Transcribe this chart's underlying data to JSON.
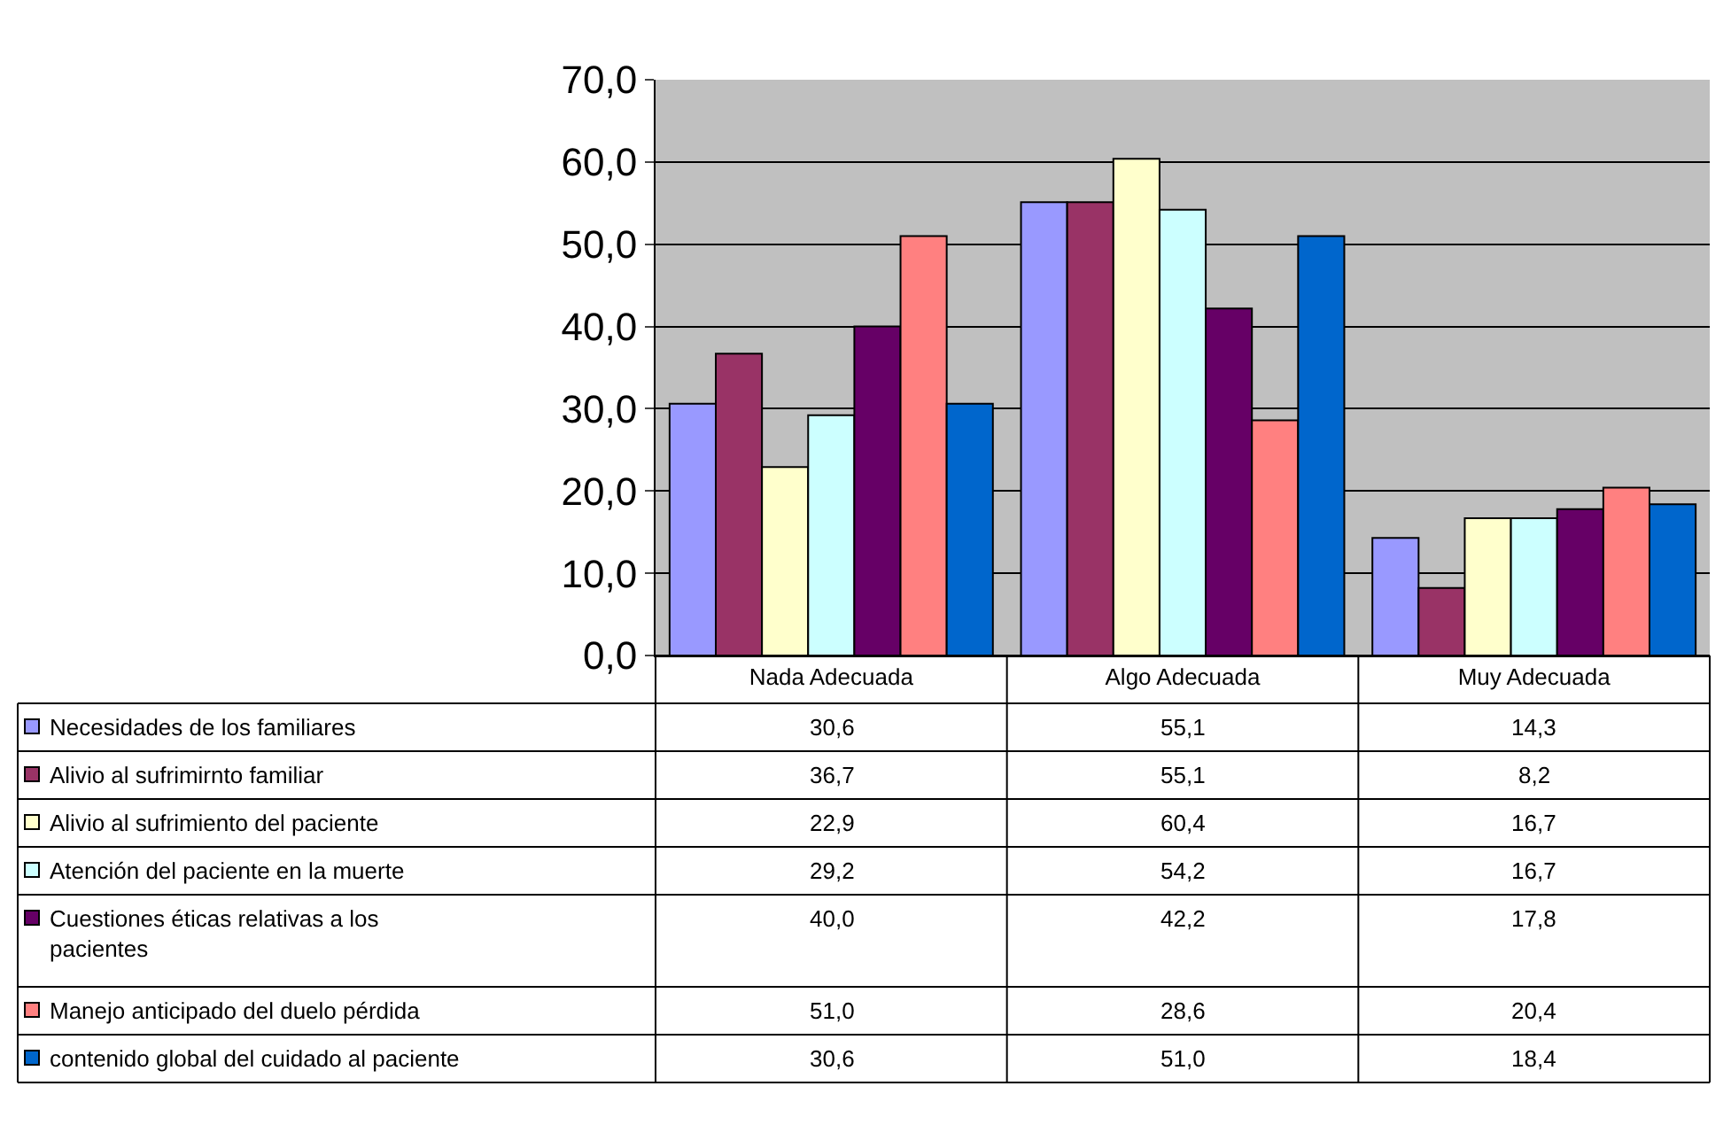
{
  "chart_data": {
    "type": "bar",
    "categories": [
      "Nada Adecuada",
      "Algo Adecuada",
      "Muy Adecuada"
    ],
    "series": [
      {
        "name": "Necesidades de los familiares",
        "color": "#9999ff",
        "values": [
          30.6,
          55.1,
          14.3
        ],
        "value_labels": [
          "30,6",
          "55,1",
          "14,3"
        ]
      },
      {
        "name": "Alivio al sufrimirnto familiar",
        "color": "#993366",
        "values": [
          36.7,
          55.1,
          8.2
        ],
        "value_labels": [
          "36,7",
          "55,1",
          "8,2"
        ]
      },
      {
        "name": "Alivio al sufrimiento del paciente",
        "color": "#ffffcc",
        "values": [
          22.9,
          60.4,
          16.7
        ],
        "value_labels": [
          "22,9",
          "60,4",
          "16,7"
        ]
      },
      {
        "name": "Atención del paciente en la muerte",
        "color": "#ccffff",
        "values": [
          29.2,
          54.2,
          16.7
        ],
        "value_labels": [
          "29,2",
          "54,2",
          "16,7"
        ]
      },
      {
        "name": "Cuestiones éticas relativas a los pacientes",
        "color": "#660066",
        "values": [
          40.0,
          42.2,
          17.8
        ],
        "value_labels": [
          "40,0",
          "42,2",
          "17,8"
        ]
      },
      {
        "name": "Manejo anticipado del duelo pérdida",
        "color": "#ff8080",
        "values": [
          51.0,
          28.6,
          20.4
        ],
        "value_labels": [
          "51,0",
          "28,6",
          "20,4"
        ]
      },
      {
        "name": "contenido global del cuidado al paciente",
        "color": "#0066cc",
        "values": [
          30.6,
          51.0,
          18.4
        ],
        "value_labels": [
          "30,6",
          "51,0",
          "18,4"
        ]
      }
    ],
    "ylim": [
      0,
      70
    ],
    "yticks": [
      {
        "value": 0,
        "label": "0,0"
      },
      {
        "value": 10,
        "label": "10,0"
      },
      {
        "value": 20,
        "label": "20,0"
      },
      {
        "value": 30,
        "label": "30,0"
      },
      {
        "value": 40,
        "label": "40,0"
      },
      {
        "value": 50,
        "label": "50,0"
      },
      {
        "value": 60,
        "label": "60,0"
      },
      {
        "value": 70,
        "label": "70,0"
      }
    ],
    "grid": "y",
    "legend": "bottom"
  }
}
